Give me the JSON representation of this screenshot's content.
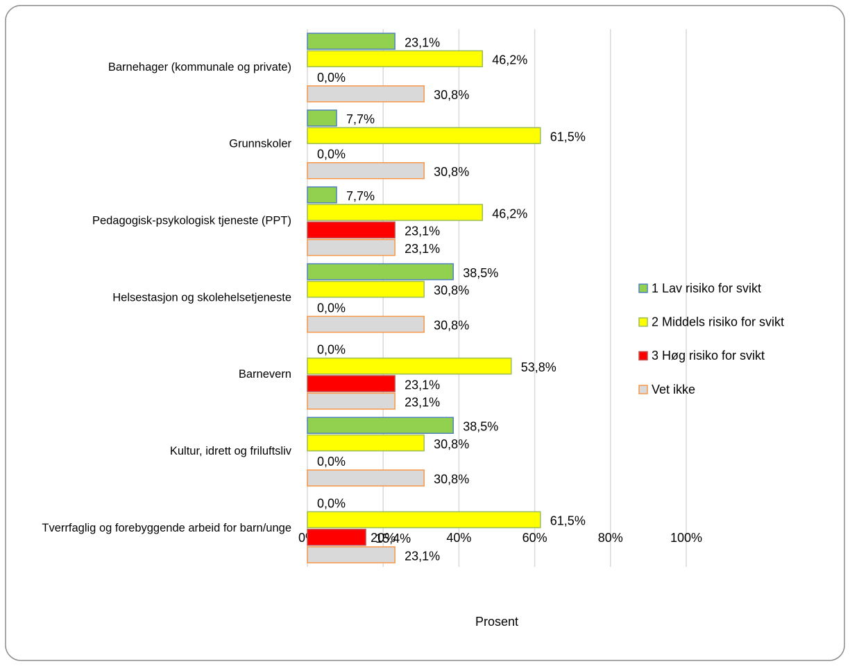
{
  "chart_data": {
    "type": "barh",
    "xlabel": "Prosent",
    "categories": [
      "Barnehager (kommunale og private)",
      "Grunnskoler",
      "Pedagogisk-psykologisk tjeneste (PPT)",
      "Helsestasjon og skolehelsetjeneste",
      "Barnevern",
      "Kultur, idrett og friluftsliv",
      "Tverrfaglig og forebyggende arbeid for barn/unge"
    ],
    "series": [
      {
        "name": "1 Lav risiko for svikt",
        "color": "#92d050",
        "edgecolor": "#4f81bd",
        "values": [
          23.1,
          7.7,
          7.7,
          38.5,
          0.0,
          38.5,
          0.0
        ],
        "value_labels": [
          "23,1%",
          "7,7%",
          "7,7%",
          "38,5%",
          "0,0%",
          "38,5%",
          "0,0%"
        ]
      },
      {
        "name": "2 Middels risiko for svikt",
        "color": "#ffff00",
        "edgecolor": "#9bbb59",
        "values": [
          46.2,
          61.5,
          46.2,
          30.8,
          53.8,
          30.8,
          61.5
        ],
        "value_labels": [
          "46,2%",
          "61,5%",
          "46,2%",
          "30,8%",
          "53,8%",
          "30,8%",
          "61,5%"
        ]
      },
      {
        "name": "3 Høg risiko for svikt",
        "color": "#ff0000",
        "edgecolor": "#c0504d",
        "values": [
          0.0,
          0.0,
          23.1,
          0.0,
          23.1,
          0.0,
          15.4
        ],
        "value_labels": [
          "0,0%",
          "0,0%",
          "23,1%",
          "0,0%",
          "23,1%",
          "0,0%",
          "15,4%"
        ]
      },
      {
        "name": "Vet ikke",
        "color": "#d9d9d9",
        "edgecolor": "#f79646",
        "values": [
          30.8,
          30.8,
          23.1,
          30.8,
          23.1,
          30.8,
          23.1
        ],
        "value_labels": [
          "30,8%",
          "30,8%",
          "23,1%",
          "30,8%",
          "23,1%",
          "30,8%",
          "23,1%"
        ]
      }
    ],
    "xlim": [
      0,
      100
    ],
    "xticks": [
      {
        "value": 0,
        "label": "0%"
      },
      {
        "value": 20,
        "label": "20%"
      },
      {
        "value": 40,
        "label": "40%"
      },
      {
        "value": 60,
        "label": "60%"
      },
      {
        "value": 80,
        "label": "80%"
      },
      {
        "value": 100,
        "label": "100%"
      }
    ],
    "grid": true,
    "legend": "right"
  }
}
